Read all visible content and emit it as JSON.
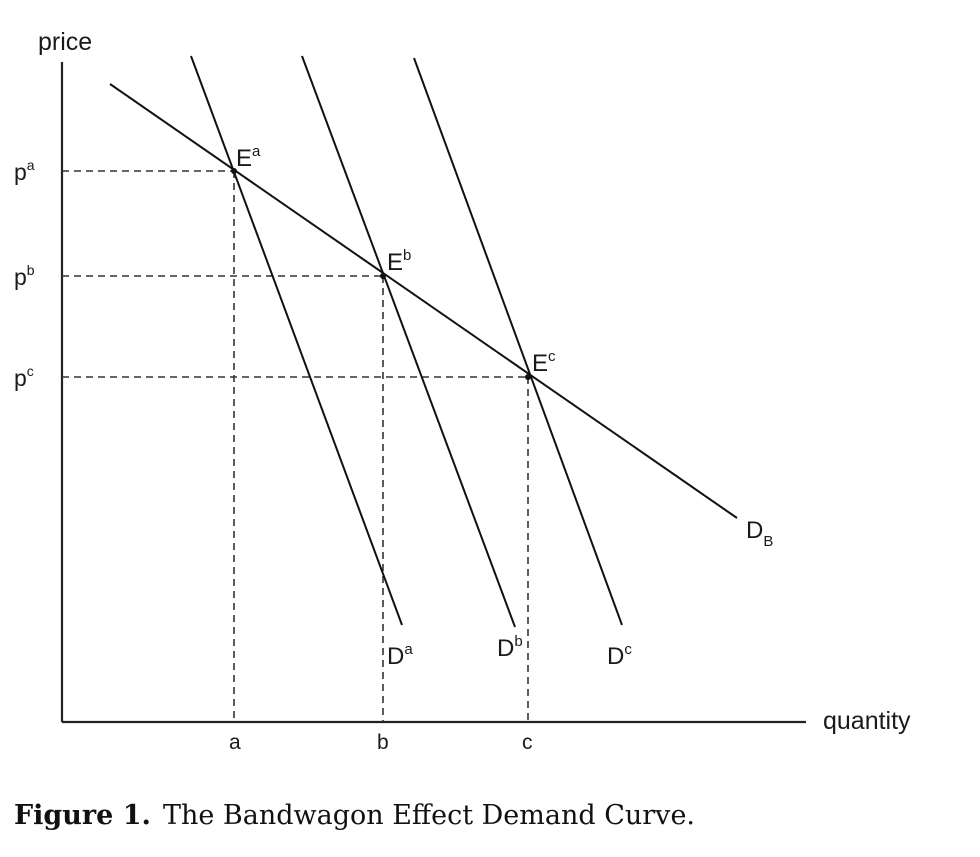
{
  "axes": {
    "y_label": "price",
    "x_label": "quantity",
    "y_ticks": [
      {
        "base": "p",
        "sup": "a"
      },
      {
        "base": "p",
        "sup": "b"
      },
      {
        "base": "p",
        "sup": "c"
      }
    ],
    "x_ticks": [
      "a",
      "b",
      "c"
    ]
  },
  "equilibria": [
    {
      "base": "E",
      "sup": "a"
    },
    {
      "base": "E",
      "sup": "b"
    },
    {
      "base": "E",
      "sup": "c"
    }
  ],
  "curves": {
    "bandwagon": {
      "base": "D",
      "sub": "B"
    },
    "demand": [
      {
        "base": "D",
        "sup": "a"
      },
      {
        "base": "D",
        "sup": "b"
      },
      {
        "base": "D",
        "sup": "c"
      }
    ]
  },
  "caption": {
    "number": "Figure 1.",
    "text": "The Bandwagon Effect Demand Curve."
  }
}
